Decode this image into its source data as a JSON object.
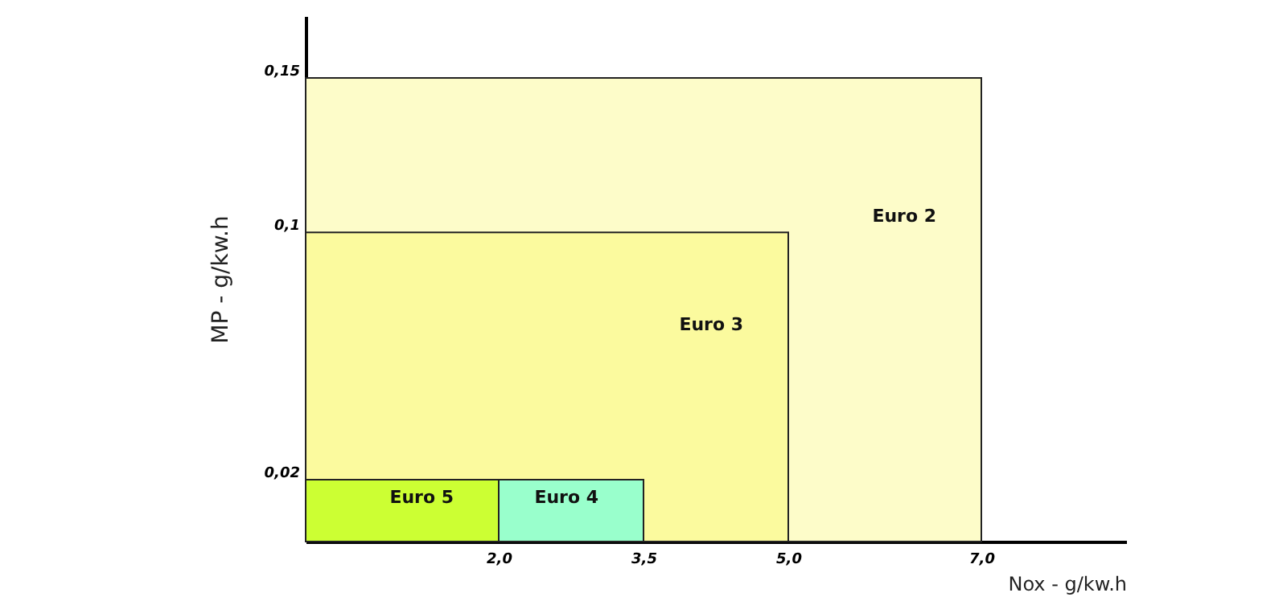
{
  "chart_data": {
    "type": "area",
    "xlabel": "Nox - g/kw.h",
    "ylabel": "MP - g/kw.h",
    "xlim": [
      0,
      8.5
    ],
    "ylim": [
      0,
      0.17
    ],
    "xticks": [
      {
        "value": 2,
        "label": "2,0"
      },
      {
        "value": 3.5,
        "label": "3,5"
      },
      {
        "value": 5,
        "label": "5,0"
      },
      {
        "value": 7,
        "label": "7,0"
      }
    ],
    "yticks": [
      {
        "value": 0.02,
        "label": "0,02"
      },
      {
        "value": 0.1,
        "label": "0,1"
      },
      {
        "value": 0.15,
        "label": "0,15"
      }
    ],
    "grid": false,
    "series": [
      {
        "name": "Euro 2",
        "color": "#fdfcc9",
        "x": [
          0,
          7
        ],
        "values": [
          0.15,
          0.15
        ]
      },
      {
        "name": "Euro 3",
        "color": "#fbfa9e",
        "x": [
          0,
          5
        ],
        "values": [
          0.1,
          0.1
        ]
      },
      {
        "name": "Euro 4",
        "color": "#99ffcc",
        "x": [
          2,
          3.5
        ],
        "values": [
          0.02,
          0.02
        ]
      },
      {
        "name": "Euro 5",
        "color": "#ccff33",
        "x": [
          0,
          2
        ],
        "values": [
          0.02,
          0.02
        ]
      }
    ]
  }
}
